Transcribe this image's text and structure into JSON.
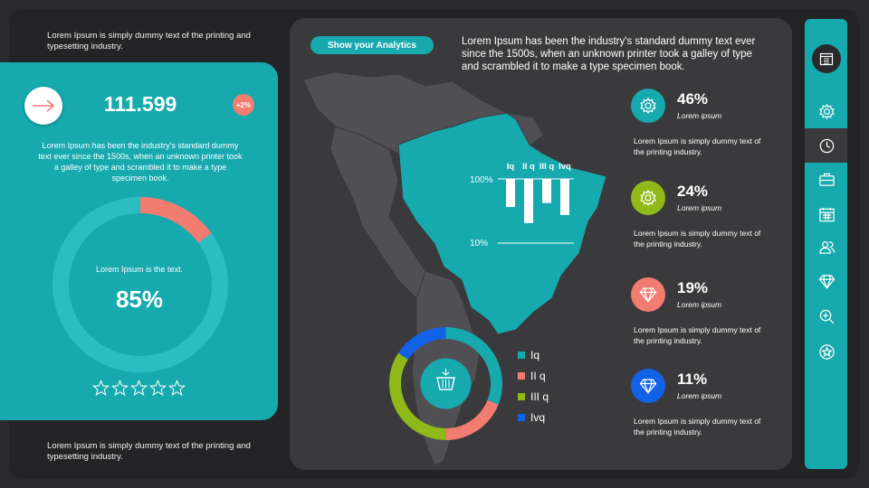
{
  "notes": {
    "top": "Lorem Ipsum is simply dummy text of the printing and typesetting industry.",
    "bottom": "Lorem Ipsum is simply dummy text of the printing and typesetting industry."
  },
  "left_card": {
    "number": "111.599",
    "badge": "+2%",
    "paragraph": "Lorem Ipsum has been the industry's standard dummy text ever since the 1500s, when an unknown printer took a galley of type and scrambled it to make a type specimen book.",
    "donut_label": "Lorem Ipsum is the text.",
    "donut_percent": "85%",
    "donut_value": 0.85,
    "rating": {
      "filled": 0,
      "total": 5
    }
  },
  "header": {
    "button": "Show your Analytics",
    "headline": "Lorem Ipsum has been the industry's standard dummy text ever since the 1500s, when an unknown printer took a galley of type and scrambled it to make a type specimen book."
  },
  "chart_data": {
    "type": "bar",
    "categories": [
      "Iq",
      "II q",
      "III q",
      "Ivq"
    ],
    "values": [
      35,
      55,
      30,
      45
    ],
    "tick_labels": [
      "100%",
      "10%"
    ],
    "legend_position": "top",
    "colors": [
      "#ffffff"
    ]
  },
  "ring_chart": {
    "type": "pie",
    "categories": [
      "Iq",
      "II q",
      "III q",
      "Ivq"
    ],
    "values": [
      31,
      19,
      34,
      16
    ],
    "colors": [
      "#16a9ae",
      "#f37c71",
      "#8fb919",
      "#1262e8"
    ],
    "center_icon": "shopping-basket-icon"
  },
  "stats": [
    {
      "value": "46%",
      "label": "Lorem ipsum",
      "desc": "Lorem Ipsum is simply dummy text of the printing industry.",
      "color": "#16a9ae",
      "icon": "gear-icon"
    },
    {
      "value": "24%",
      "label": "Lorem ipsum",
      "desc": "Lorem Ipsum is simply dummy text of the printing industry.",
      "color": "#8fb919",
      "icon": "gear-icon"
    },
    {
      "value": "19%",
      "label": "Lorem ipsum",
      "desc": "Lorem Ipsum is simply dummy text of the printing industry.",
      "color": "#f37c71",
      "icon": "diamond-icon"
    },
    {
      "value": "11%",
      "label": "Lorem ipsum",
      "desc": "Lorem Ipsum is simply dummy text of the printing industry.",
      "color": "#1262e8",
      "icon": "diamond-icon"
    }
  ],
  "sidebar": {
    "items": [
      "calendar-grid-icon",
      "gear-icon",
      "clock-icon",
      "briefcase-icon",
      "calendar-icon",
      "users-icon",
      "diamond-icon",
      "zoom-in-icon",
      "star-icon"
    ],
    "active": "clock-icon"
  },
  "colors": {
    "teal": "#16a9ae",
    "coral": "#f37c71",
    "green": "#8fb919",
    "blue": "#1262e8",
    "panel": "#3a3a3c"
  }
}
